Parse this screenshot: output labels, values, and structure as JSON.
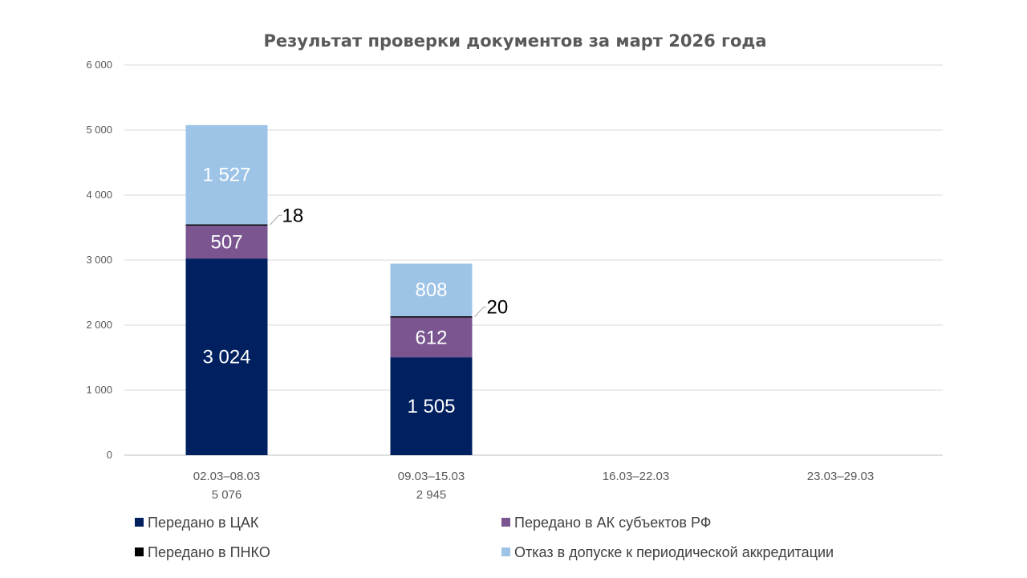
{
  "chart_data": {
    "type": "bar",
    "stacked": true,
    "title": "Результат проверки документов за март 2026 года",
    "xlabel": "",
    "ylabel": "",
    "ylim": [
      0,
      6000
    ],
    "yticks": [
      0,
      1000,
      2000,
      3000,
      4000,
      5000,
      6000
    ],
    "ytick_labels": [
      "0",
      "1 000",
      "2 000",
      "3 000",
      "4 000",
      "5 000",
      "6 000"
    ],
    "grid": true,
    "legend_position": "bottom",
    "categories": [
      "02.03–08.03",
      "09.03–15.03",
      "16.03–22.03",
      "23.03–29.03"
    ],
    "category_totals": [
      "5 076",
      "2 945",
      "",
      ""
    ],
    "series": [
      {
        "name": "Передано в ЦАК",
        "color": "#002060",
        "values": [
          3024,
          1505,
          null,
          null
        ],
        "labels": [
          "3 024",
          "1 505",
          "",
          ""
        ]
      },
      {
        "name": "Передано в АК субъектов РФ",
        "color": "#7A5590",
        "values": [
          507,
          612,
          null,
          null
        ],
        "labels": [
          "507",
          "612",
          "",
          ""
        ]
      },
      {
        "name": "Передано в ПНКО",
        "color": "#000000",
        "values": [
          18,
          20,
          null,
          null
        ],
        "labels": [
          "18",
          "20",
          "",
          ""
        ]
      },
      {
        "name": "Отказ в допуске к периодической аккредитации",
        "color": "#9DC3E6",
        "values": [
          1527,
          808,
          null,
          null
        ],
        "labels": [
          "1 527",
          "808",
          "",
          ""
        ]
      }
    ]
  }
}
